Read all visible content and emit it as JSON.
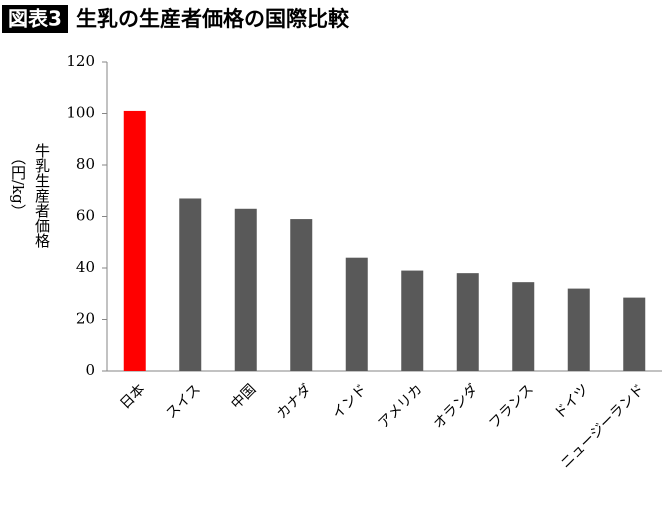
{
  "chart_data": {
    "type": "bar",
    "badge": "図表3",
    "title": "生乳の生産者価格の国際比較",
    "y_label_lines": [
      "牛乳生産者価格",
      "（円/kg）"
    ],
    "categories": [
      "日本",
      "スイス",
      "中国",
      "カナダ",
      "インド",
      "アメリカ",
      "オランダ",
      "フランス",
      "ドイツ",
      "ニュージーランド"
    ],
    "values": [
      101,
      67,
      63,
      59,
      44,
      39,
      38,
      34.5,
      32,
      28.5
    ],
    "colors": [
      "#ff0000",
      "#595959",
      "#595959",
      "#595959",
      "#595959",
      "#595959",
      "#595959",
      "#595959",
      "#595959",
      "#595959"
    ],
    "ylim": [
      0,
      120
    ],
    "yticks": [
      0,
      20,
      40,
      60,
      80,
      100,
      120
    ],
    "grid": false
  }
}
